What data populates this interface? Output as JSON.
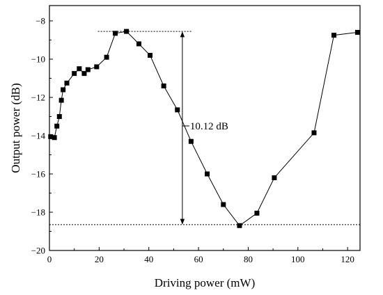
{
  "chart_data": {
    "type": "line",
    "title": "",
    "xlabel": "Driving power  (mW)",
    "ylabel": "Output power  (dB)",
    "xlim": [
      0,
      125
    ],
    "ylim": [
      -20,
      -7.2
    ],
    "xticks": [
      0,
      20,
      40,
      60,
      80,
      100,
      120
    ],
    "yticks": [
      -20,
      -18,
      -16,
      -14,
      -12,
      -10,
      -8
    ],
    "grid": false,
    "legend": "none",
    "series": [
      {
        "marker": "square",
        "color": "#000000",
        "points": [
          {
            "x": 0.5,
            "y": -14.05
          },
          {
            "x": 2.0,
            "y": -14.1
          },
          {
            "x": 3.0,
            "y": -13.5
          },
          {
            "x": 4.0,
            "y": -13.0
          },
          {
            "x": 4.8,
            "y": -12.15
          },
          {
            "x": 5.5,
            "y": -11.6
          },
          {
            "x": 7.0,
            "y": -11.25
          },
          {
            "x": 10.0,
            "y": -10.75
          },
          {
            "x": 12.0,
            "y": -10.5
          },
          {
            "x": 14.0,
            "y": -10.75
          },
          {
            "x": 15.5,
            "y": -10.55
          },
          {
            "x": 19.0,
            "y": -10.4
          },
          {
            "x": 23.0,
            "y": -9.9
          },
          {
            "x": 26.5,
            "y": -8.65
          },
          {
            "x": 31.0,
            "y": -8.55
          },
          {
            "x": 36.0,
            "y": -9.2
          },
          {
            "x": 40.5,
            "y": -9.8
          },
          {
            "x": 46.0,
            "y": -11.4
          },
          {
            "x": 51.5,
            "y": -12.65
          },
          {
            "x": 57.0,
            "y": -14.3
          },
          {
            "x": 63.5,
            "y": -16.0
          },
          {
            "x": 70.0,
            "y": -17.6
          },
          {
            "x": 76.5,
            "y": -18.7
          },
          {
            "x": 83.5,
            "y": -18.05
          },
          {
            "x": 90.5,
            "y": -16.2
          },
          {
            "x": 106.5,
            "y": -13.85
          },
          {
            "x": 114.5,
            "y": -8.75
          },
          {
            "x": 124.0,
            "y": -8.6
          }
        ]
      }
    ],
    "reference_lines": [
      {
        "y": -8.55,
        "x_from": 19.5,
        "x_to": 57.5,
        "style": "dotted"
      },
      {
        "y": -18.65,
        "x_from": 0,
        "x_to": 125,
        "style": "dotted"
      }
    ],
    "annotation": {
      "text": "10.12 dB",
      "arrow_x": 53.5,
      "y_top": -8.55,
      "y_bottom": -18.65
    }
  }
}
